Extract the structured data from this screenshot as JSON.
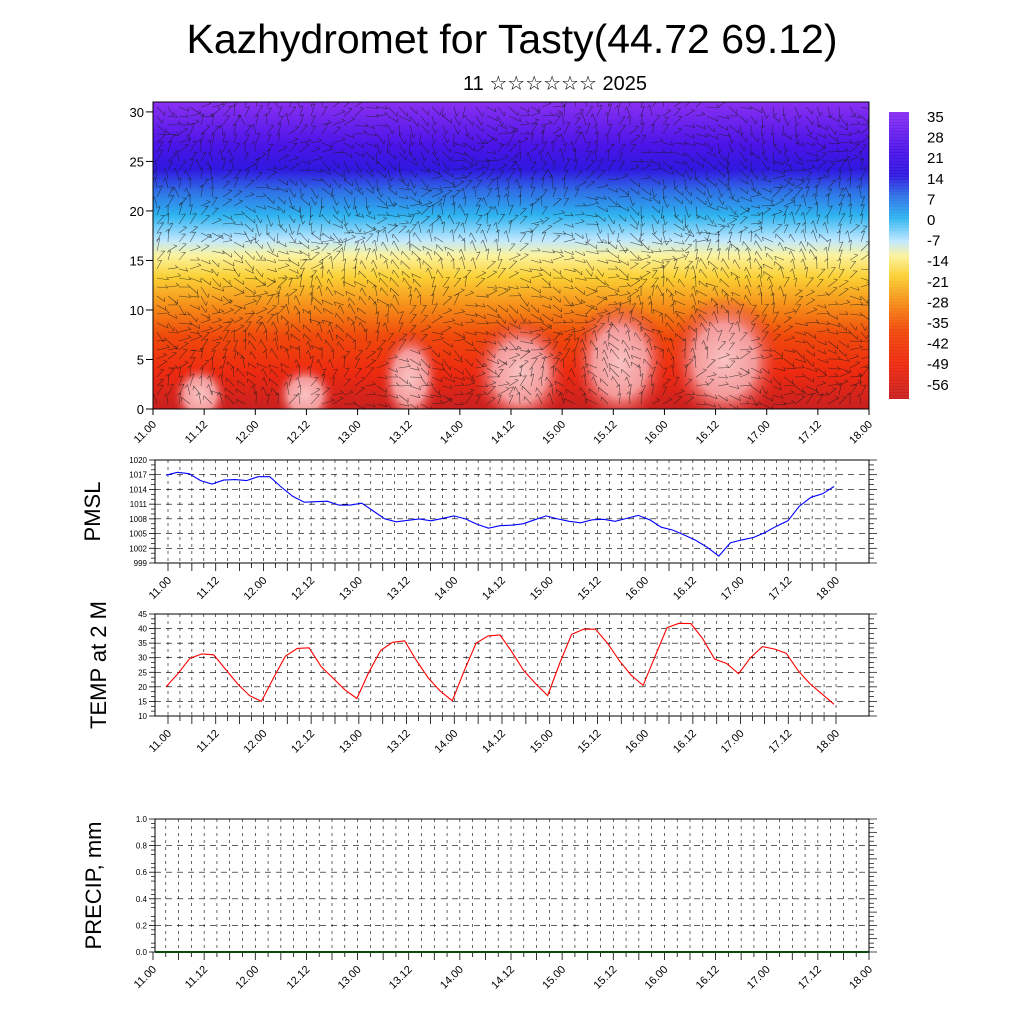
{
  "title": "Kazhydromet for Tasty(44.72 69.12)",
  "subtitle": "11 ☆☆☆☆☆☆ 2025",
  "time_labels": [
    "11.00",
    "11.12",
    "12.00",
    "12.12",
    "13.00",
    "13.12",
    "14.00",
    "14.12",
    "15.00",
    "15.12",
    "16.00",
    "16.12",
    "17.00",
    "17.12",
    "18.00"
  ],
  "chart_data": [
    {
      "type": "heatmap",
      "name": "temperature-wind-cross-section",
      "xlabel": "",
      "ylabel": "",
      "x_ticks": [
        "11.00",
        "11.12",
        "12.00",
        "12.12",
        "13.00",
        "13.12",
        "14.00",
        "14.12",
        "15.00",
        "15.12",
        "16.00",
        "16.12",
        "17.00",
        "17.12",
        "18.00"
      ],
      "y_ticks": [
        0,
        5,
        10,
        15,
        20,
        25,
        30
      ],
      "ylim": [
        0,
        31
      ],
      "colorbar_labels": [
        "35",
        "28",
        "21",
        "14",
        "7",
        "0",
        "-7",
        "-14",
        "-21",
        "-28",
        "-35",
        "-42",
        "-49",
        "-56"
      ],
      "colorbar_range": [
        -60,
        38
      ],
      "overlay": "wind barbs",
      "grid": false
    },
    {
      "type": "line",
      "name": "pmsl",
      "ylabel": "PMSL",
      "ylim": [
        999,
        1020
      ],
      "y_ticks": [
        999,
        1002,
        1005,
        1008,
        1011,
        1014,
        1017,
        1020
      ],
      "x_ticks": [
        "11.00",
        "11.12",
        "12.00",
        "12.12",
        "13.00",
        "13.12",
        "14.00",
        "14.12",
        "15.00",
        "15.12",
        "16.00",
        "16.12",
        "17.00",
        "17.12",
        "18.00"
      ],
      "series": [
        {
          "color": "#0000ff",
          "values": [
            1016.9,
            1017.5,
            1017.2,
            1015.8,
            1015.1,
            1015.9,
            1016.0,
            1015.8,
            1016.6,
            1016.6,
            1014.5,
            1012.6,
            1011.4,
            1011.5,
            1011.6,
            1010.8,
            1010.8,
            1011.2,
            1009.6,
            1008.0,
            1007.4,
            1007.7,
            1008.0,
            1007.6,
            1008.1,
            1008.6,
            1008.0,
            1006.9,
            1006.1,
            1006.6,
            1006.7,
            1007.0,
            1007.8,
            1008.6,
            1008.0,
            1007.5,
            1007.2,
            1007.8,
            1007.9,
            1007.5,
            1008.1,
            1008.7,
            1007.8,
            1006.3,
            1005.7,
            1004.7,
            1003.6,
            1002.2,
            1000.4,
            1003.1,
            1003.7,
            1004.2,
            1005.2,
            1006.5,
            1007.6,
            1010.6,
            1012.4,
            1013.1,
            1014.6
          ]
        }
      ],
      "grid": true
    },
    {
      "type": "line",
      "name": "temp-2m",
      "ylabel": "TEMP at 2 M",
      "ylim": [
        10,
        45
      ],
      "y_ticks": [
        10,
        15,
        20,
        25,
        30,
        35,
        40,
        45
      ],
      "x_ticks": [
        "11.00",
        "11.12",
        "12.00",
        "12.12",
        "13.00",
        "13.12",
        "14.00",
        "14.12",
        "15.00",
        "15.12",
        "16.00",
        "16.12",
        "17.00",
        "17.12",
        "18.00"
      ],
      "series": [
        {
          "color": "#ff0000",
          "values": [
            20.0,
            24.5,
            29.8,
            31.3,
            31.0,
            26.0,
            21.0,
            17.0,
            15.0,
            23.0,
            30.5,
            33.2,
            33.4,
            27.0,
            23.0,
            19.0,
            16.0,
            25.0,
            32.5,
            35.3,
            35.8,
            29.0,
            23.0,
            18.5,
            15.2,
            25.5,
            35.0,
            37.5,
            37.8,
            32.0,
            25.5,
            21.0,
            17.0,
            28.0,
            38.0,
            39.8,
            39.8,
            35.0,
            29.0,
            24.0,
            20.5,
            30.5,
            40.3,
            41.8,
            41.7,
            36.5,
            29.5,
            28.0,
            24.5,
            30.0,
            33.8,
            33.0,
            31.5,
            25.5,
            21.0,
            17.5,
            14.0
          ]
        }
      ],
      "grid": true
    },
    {
      "type": "line",
      "name": "precip",
      "ylabel": "PRECIP, mm",
      "ylim": [
        0.0,
        1.0
      ],
      "y_ticks": [
        "0.0",
        "0.2",
        "0.4",
        "0.6",
        "0.8",
        "1.0"
      ],
      "x_ticks": [
        "11.00",
        "11.12",
        "12.00",
        "12.12",
        "13.00",
        "13.12",
        "14.00",
        "14.12",
        "15.00",
        "15.12",
        "16.00",
        "16.12",
        "17.00",
        "17.12",
        "18.00"
      ],
      "series": [
        {
          "color": "#0a4a0a",
          "values": [
            0.0,
            0.0
          ]
        }
      ],
      "grid": true
    }
  ]
}
